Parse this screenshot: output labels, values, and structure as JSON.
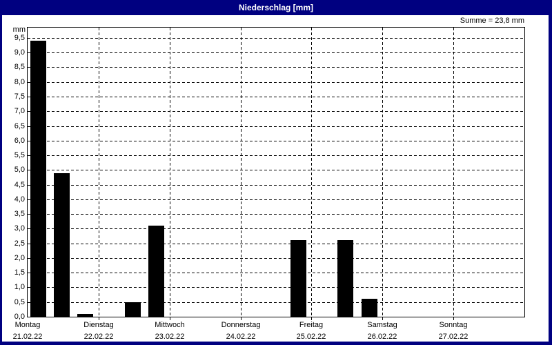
{
  "window": {
    "title": "Niederschlag [mm]"
  },
  "summary": "Summe = 23,8 mm",
  "chart_data": {
    "type": "bar",
    "title": "Niederschlag [mm]",
    "summary_text": "Summe = 23,8 mm",
    "total_mm": "23,8",
    "unit_label": "mm",
    "ylabel": "mm",
    "ylim": [
      0,
      9.85
    ],
    "ytick_step": 0.5,
    "yticks": [
      "0,0",
      "0,5",
      "1,0",
      "1,5",
      "2,0",
      "2,5",
      "3,0",
      "3,5",
      "4,0",
      "4,5",
      "5,0",
      "5,5",
      "6,0",
      "6,5",
      "7,0",
      "7,5",
      "8,0",
      "8,5",
      "9,0",
      "9,5"
    ],
    "grid_style": "dashed",
    "bars_per_day": 3,
    "days": [
      {
        "label": "Montag",
        "date": "21.02.22",
        "values": [
          9.4,
          4.9,
          0.1
        ]
      },
      {
        "label": "Dienstag",
        "date": "22.02.22",
        "values": [
          0,
          0.5,
          3.1
        ]
      },
      {
        "label": "Mittwoch",
        "date": "23.02.22",
        "values": [
          0,
          0,
          0
        ]
      },
      {
        "label": "Donnerstag",
        "date": "24.02.22",
        "values": [
          0,
          0,
          2.6
        ]
      },
      {
        "label": "Freitag",
        "date": "25.02.22",
        "values": [
          0,
          2.6,
          0.6
        ]
      },
      {
        "label": "Samstag",
        "date": "26.02.22",
        "values": [
          0,
          0,
          0
        ]
      },
      {
        "label": "Sonntag",
        "date": "27.02.22",
        "values": [
          0,
          0,
          0
        ]
      }
    ],
    "colors": {
      "frame": "#000080",
      "title_text": "#ffffff",
      "bar": "#000000",
      "grid": "#000000",
      "plot_background": "#ffffff",
      "text": "#000000"
    }
  }
}
